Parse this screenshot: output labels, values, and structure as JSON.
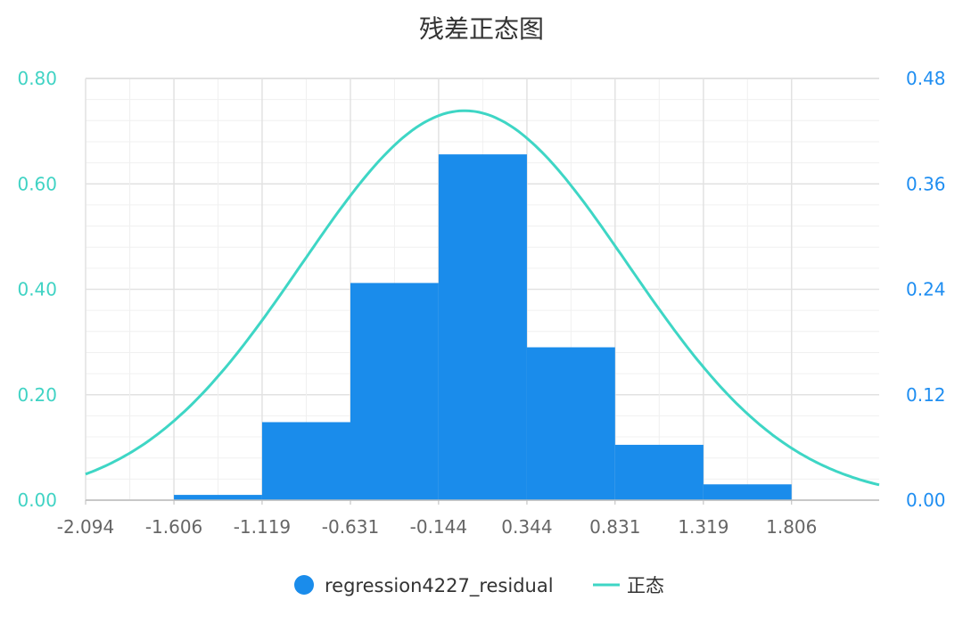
{
  "colors": {
    "bar": "#1a8ceb",
    "curve": "#3ed6c5",
    "left_axis_text": "#40d3c4",
    "right_axis_text": "#1f8ef1",
    "x_axis_text": "#666666",
    "grid_major": "#e2e2e2",
    "grid_minor": "#f0f0f0",
    "title_text": "#333333"
  },
  "chart_data": {
    "type": "bar",
    "title": "残差正态图",
    "bins": {
      "edges": [
        -2.094,
        -1.606,
        -1.119,
        -0.631,
        -0.144,
        0.344,
        0.831,
        1.319,
        1.806
      ],
      "values": [
        0.0,
        0.01,
        0.148,
        0.412,
        0.656,
        0.29,
        0.105,
        0.03
      ],
      "series_name": "regression4227_residual"
    },
    "x_ticks": [
      "-2.094",
      "-1.606",
      "-1.119",
      "-0.631",
      "-0.144",
      "0.344",
      "0.831",
      "1.319",
      "1.806"
    ],
    "x_max": 2.29,
    "y_left": {
      "ticks": [
        "0.00",
        "0.20",
        "0.40",
        "0.60",
        "0.80"
      ],
      "min": 0,
      "max": 0.8
    },
    "y_right": {
      "ticks": [
        "0.00",
        "0.12",
        "0.24",
        "0.36",
        "0.48"
      ],
      "min": 0,
      "max": 0.48
    },
    "normal_curve": {
      "name": "正态",
      "mean": 0.0,
      "std": 0.9,
      "axis": "right"
    },
    "legend": [
      {
        "label": "regression4227_residual",
        "marker": "circle"
      },
      {
        "label": "正态",
        "marker": "line"
      }
    ],
    "grid": true,
    "legend_position": "bottom"
  }
}
